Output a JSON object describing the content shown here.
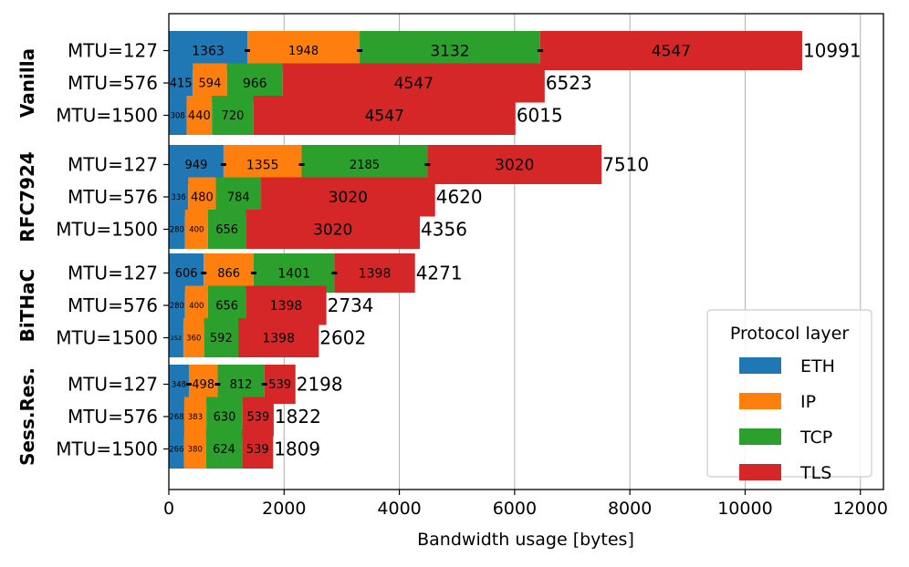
{
  "chart_data": {
    "type": "bar",
    "orientation": "horizontal",
    "stacked": true,
    "xlabel": "Bandwidth usage [bytes]",
    "xlim": [
      0,
      12400
    ],
    "xticks": [
      0,
      2000,
      4000,
      6000,
      8000,
      10000,
      12000
    ],
    "xtick_labels": [
      "0",
      "2000",
      "4000",
      "6000",
      "8000",
      "10000",
      "12000"
    ],
    "grid": "vertical",
    "legend": {
      "title": "Protocol layer",
      "placement": "bottom-right",
      "entries": [
        "ETH",
        "IP",
        "TCP",
        "TLS"
      ]
    },
    "series_colors": [
      "#1f77b4",
      "#ff7f0e",
      "#2ca02c",
      "#d62728"
    ],
    "groups": [
      {
        "name": "Vanilla",
        "bars": [
          {
            "label": "MTU=127",
            "values": [
              1363,
              1948,
              3132,
              4547
            ],
            "labels": [
              "1363",
              "1948",
              "3132",
              "4547"
            ],
            "total": "10991"
          },
          {
            "label": "MTU=576",
            "values": [
              415,
              594,
              966,
              4547
            ],
            "labels": [
              "415",
              "594",
              "966",
              "4547"
            ],
            "total": "6523"
          },
          {
            "label": "MTU=1500",
            "values": [
              308,
              440,
              720,
              4547
            ],
            "labels": [
              "308",
              "440",
              "720",
              "4547"
            ],
            "total": "6015"
          }
        ]
      },
      {
        "name": "RFC7924",
        "bars": [
          {
            "label": "MTU=127",
            "values": [
              949,
              1355,
              2185,
              3020
            ],
            "labels": [
              "949",
              "1355",
              "2185",
              "3020"
            ],
            "total": "7510"
          },
          {
            "label": "MTU=576",
            "values": [
              336,
              480,
              784,
              3020
            ],
            "labels": [
              "336",
              "480",
              "784",
              "3020"
            ],
            "total": "4620"
          },
          {
            "label": "MTU=1500",
            "values": [
              280,
              400,
              656,
              3020
            ],
            "labels": [
              "280",
              "400",
              "656",
              "3020"
            ],
            "total": "4356"
          }
        ]
      },
      {
        "name": "BiTHaC",
        "bars": [
          {
            "label": "MTU=127",
            "values": [
              606,
              866,
              1401,
              1398
            ],
            "labels": [
              "606",
              "866",
              "1401",
              "1398"
            ],
            "total": "4271"
          },
          {
            "label": "MTU=576",
            "values": [
              280,
              400,
              656,
              1398
            ],
            "labels": [
              "280",
              "400",
              "656",
              "1398"
            ],
            "total": "2734"
          },
          {
            "label": "MTU=1500",
            "values": [
              252,
              360,
              592,
              1398
            ],
            "labels": [
              "252",
              "360",
              "592",
              "1398"
            ],
            "total": "2602"
          }
        ]
      },
      {
        "name": "Sess.Res.",
        "bars": [
          {
            "label": "MTU=127",
            "values": [
              348,
              498,
              812,
              539
            ],
            "labels": [
              "348",
              "498",
              "812",
              "539"
            ],
            "total": "2198"
          },
          {
            "label": "MTU=576",
            "values": [
              268,
              383,
              630,
              539
            ],
            "labels": [
              "268",
              "383",
              "630",
              "539"
            ],
            "total": "1822"
          },
          {
            "label": "MTU=1500",
            "values": [
              266,
              380,
              624,
              539
            ],
            "labels": [
              "266",
              "380",
              "624",
              "539"
            ],
            "total": "1809"
          }
        ]
      }
    ]
  }
}
